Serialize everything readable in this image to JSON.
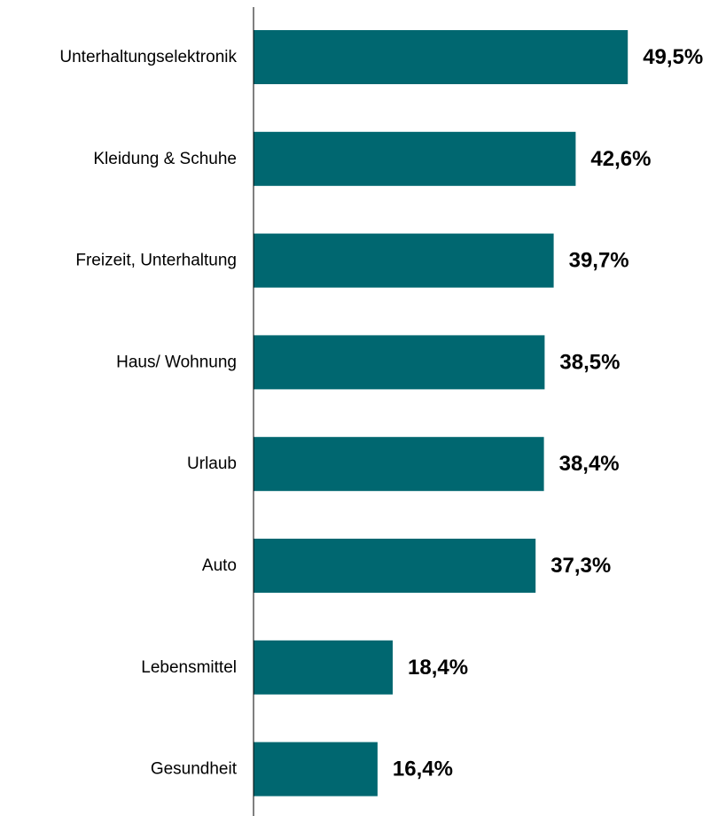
{
  "chart_data": {
    "type": "bar",
    "orientation": "horizontal",
    "categories": [
      "Unterhaltungselektronik",
      "Kleidung & Schuhe",
      "Freizeit, Unterhaltung",
      "Haus/ Wohnung",
      "Urlaub",
      "Auto",
      "Lebensmittel",
      "Gesundheit"
    ],
    "values": [
      49.5,
      42.6,
      39.7,
      38.5,
      38.4,
      37.3,
      18.4,
      16.4
    ],
    "value_labels": [
      "49,5%",
      "42,6%",
      "39,7%",
      "38,5%",
      "38,4%",
      "37,3%",
      "18,4%",
      "16,4%"
    ],
    "bar_color": "#006770",
    "title": "",
    "xlabel": "",
    "ylabel": "",
    "grid": false,
    "legend": "none"
  }
}
